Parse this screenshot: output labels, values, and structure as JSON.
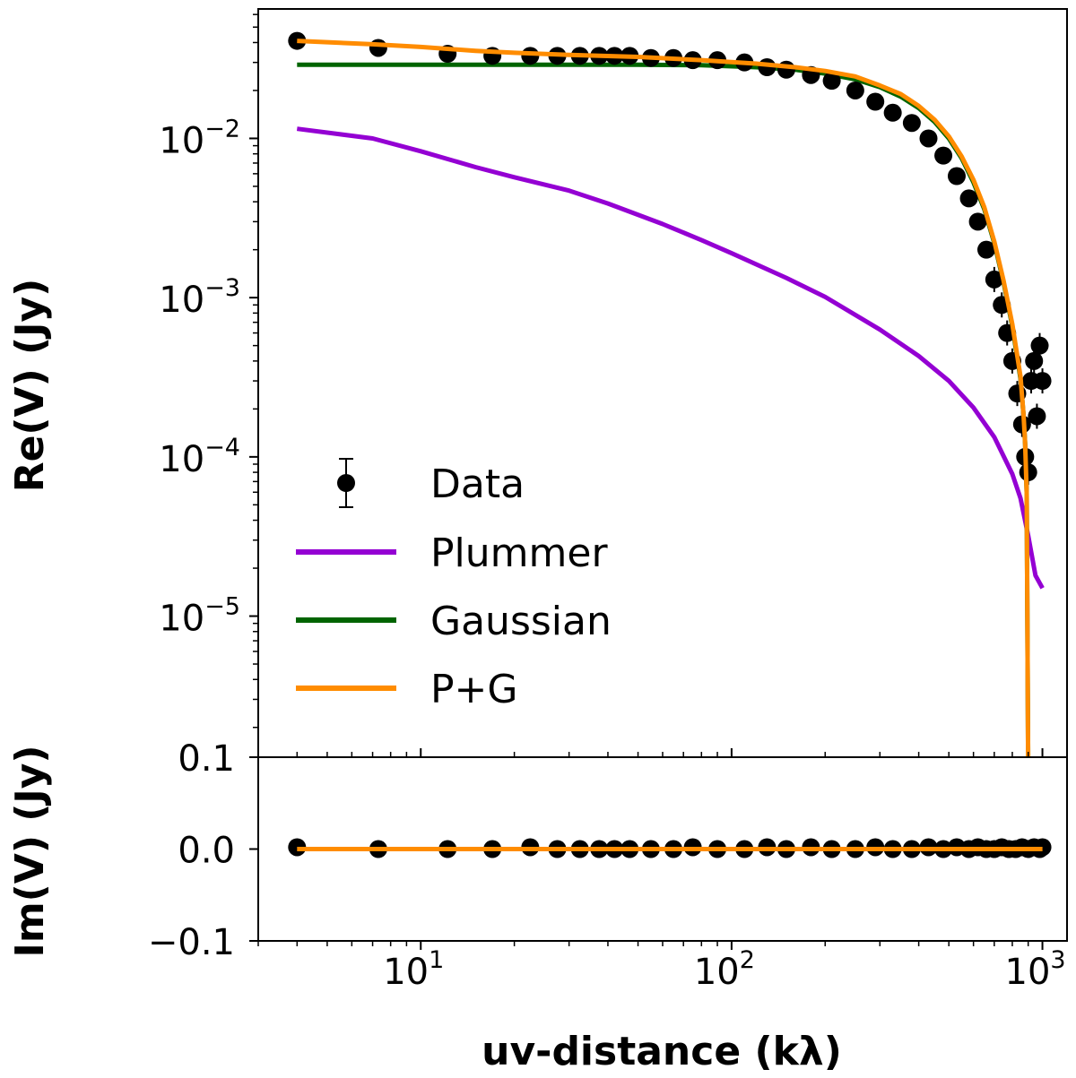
{
  "chart_data": {
    "type": "line",
    "xscale": "log",
    "xlim": [
      3,
      1200
    ],
    "xlabel": "uv-distance (kλ)",
    "xticks": [
      {
        "base": "10",
        "exp": "1"
      },
      {
        "base": "10",
        "exp": "2"
      },
      {
        "base": "10",
        "exp": "3"
      }
    ],
    "colors": {
      "data": "#000000",
      "plummer": "#9400d3",
      "gaussian": "#006400",
      "pg": "#ff8c00"
    },
    "legend": {
      "position": "lower-left",
      "entries": [
        "Data",
        "Plummer",
        "Gaussian",
        "P+G"
      ]
    },
    "top_panel": {
      "ylabel": "Re(V) (Jy)",
      "yscale": "log",
      "ylim": [
        1.3e-06,
        0.065
      ],
      "yticks": [
        {
          "base": "10",
          "exp": "−2"
        },
        {
          "base": "10",
          "exp": "−3"
        },
        {
          "base": "10",
          "exp": "−4"
        },
        {
          "base": "10",
          "exp": "−5"
        }
      ],
      "series": [
        {
          "name": "Data",
          "x": [
            4,
            7.3,
            12.2,
            17,
            22.5,
            27.5,
            32.5,
            37.5,
            42,
            47,
            55,
            65,
            75,
            90,
            110,
            130,
            150,
            180,
            210,
            250,
            290,
            330,
            380,
            430,
            480,
            530,
            580,
            620,
            660,
            700,
            740,
            770,
            800,
            830,
            860,
            880,
            900,
            920,
            940,
            960,
            980,
            1000
          ],
          "y": [
            0.041,
            0.037,
            0.034,
            0.033,
            0.033,
            0.033,
            0.033,
            0.033,
            0.033,
            0.033,
            0.032,
            0.032,
            0.031,
            0.031,
            0.03,
            0.028,
            0.027,
            0.025,
            0.023,
            0.02,
            0.017,
            0.0145,
            0.0125,
            0.01,
            0.0078,
            0.0058,
            0.0042,
            0.003,
            0.002,
            0.0013,
            0.0009,
            0.0006,
            0.0004,
            0.00025,
            0.00016,
            0.0001,
            8e-05,
            0.0003,
            0.0004,
            0.00018,
            0.0005,
            0.0003
          ]
        },
        {
          "name": "Plummer",
          "x": [
            4,
            7,
            10,
            15,
            20,
            30,
            40,
            60,
            80,
            100,
            150,
            200,
            300,
            400,
            500,
            600,
            700,
            800,
            850,
            900,
            950,
            1000
          ],
          "y": [
            0.0115,
            0.01,
            0.0083,
            0.0066,
            0.0057,
            0.0047,
            0.0039,
            0.0029,
            0.0023,
            0.0019,
            0.00133,
            0.00101,
            0.00063,
            0.00043,
            0.0003,
            0.000204,
            0.000133,
            7.8e-05,
            5.5e-05,
            3.2e-05,
            1.8e-05,
            1.5e-05
          ]
        },
        {
          "name": "Gaussian",
          "x": [
            4,
            20,
            50,
            80,
            120,
            160,
            200,
            250,
            300,
            350,
            400,
            450,
            500,
            550,
            600,
            650,
            700,
            750,
            800,
            850,
            870,
            880,
            890,
            900
          ],
          "y": [
            0.029,
            0.029,
            0.029,
            0.0288,
            0.028,
            0.027,
            0.0255,
            0.0235,
            0.021,
            0.0183,
            0.0155,
            0.0127,
            0.01,
            0.0075,
            0.0053,
            0.0036,
            0.0022,
            0.00125,
            0.00066,
            0.00031,
            0.00018,
            0.00012,
            6e-05,
            1e-06
          ]
        },
        {
          "name": "P+G",
          "x": [
            4,
            7,
            10,
            15,
            20,
            30,
            50,
            80,
            120,
            160,
            200,
            250,
            300,
            350,
            400,
            450,
            500,
            550,
            600,
            650,
            700,
            750,
            800,
            850,
            870,
            880,
            890,
            900
          ],
          "y": [
            0.041,
            0.039,
            0.0375,
            0.0355,
            0.0345,
            0.0335,
            0.0325,
            0.031,
            0.0295,
            0.028,
            0.0265,
            0.0245,
            0.0215,
            0.019,
            0.016,
            0.0131,
            0.0103,
            0.0077,
            0.0055,
            0.0037,
            0.00225,
            0.00128,
            0.00068,
            0.00032,
            0.00018,
            0.00012,
            6e-05,
            1e-06
          ]
        }
      ]
    },
    "bottom_panel": {
      "ylabel": "Im(V) (Jy)",
      "yscale": "linear",
      "ylim": [
        -0.1,
        0.1
      ],
      "yticks": [
        "0.1",
        "0.0",
        "−0.1"
      ],
      "tick_values": [
        0.1,
        0.0,
        -0.1
      ],
      "series": [
        {
          "name": "Data",
          "x": [
            4,
            7.3,
            12.2,
            17,
            22.5,
            27.5,
            32.5,
            37.5,
            42,
            47,
            55,
            65,
            75,
            90,
            110,
            130,
            150,
            180,
            210,
            250,
            290,
            330,
            380,
            430,
            480,
            530,
            580,
            620,
            660,
            700,
            740,
            780,
            820,
            860,
            900,
            940,
            980,
            1000
          ],
          "y": [
            0.002,
            0.0,
            0.0,
            0.0,
            0.002,
            0.0,
            0.0,
            0.0,
            0.0,
            0.0,
            0.0,
            0.0,
            0.002,
            0.0,
            0.0,
            0.002,
            0.0,
            0.002,
            0.0,
            0.0,
            0.002,
            0.0,
            0.0,
            0.002,
            0.0,
            0.002,
            0.0,
            0.002,
            0.0,
            0.0,
            0.002,
            0.0,
            0.0,
            0.002,
            0.0,
            0.002,
            0.0,
            0.002
          ]
        },
        {
          "name": "P+G",
          "x": [
            4,
            1000
          ],
          "y": [
            0.0,
            0.0
          ]
        }
      ]
    }
  }
}
